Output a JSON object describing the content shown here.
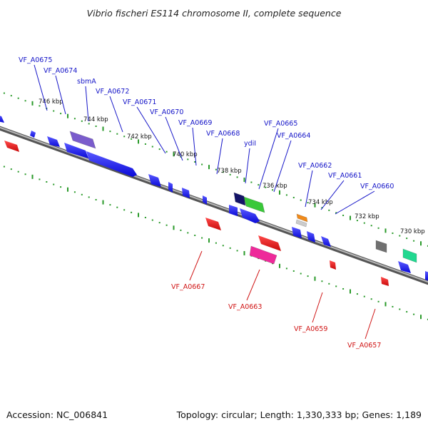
{
  "title": "Vibrio fischeri ES114 chromosome II, complete sequence",
  "footer": {
    "accession": "Accession: NC_006841",
    "summary": "Topology: circular; Length: 1,330,333 bp; Genes: 1,189"
  },
  "kbp_ticks": [
    "746 kbp",
    "744 kbp",
    "742 kbp",
    "740 kbp",
    "738 kbp",
    "736 kbp",
    "734 kbp",
    "732 kbp",
    "730 kbp"
  ],
  "genes_top": [
    "VF_A0675",
    "VF_A0674",
    "sbmA",
    "VF_A0672",
    "VF_A0671",
    "VF_A0670",
    "VF_A0669",
    "VF_A0668",
    "ydiI",
    "VF_A0665",
    "VF_A0664",
    "VF_A0662",
    "VF_A0661",
    "VF_A0660"
  ],
  "genes_bottom": [
    "VF_A0667",
    "VF_A0663",
    "VF_A0659",
    "VF_A0657"
  ],
  "colors": {
    "forward_gene": "#1a1af0",
    "reverse_gene": "#e81515",
    "backbone": "#888888",
    "tick_dots": "#2a9a2a",
    "top_label": "#1515c8",
    "bottom_label": "#d01515"
  },
  "features": [
    {
      "strand": "+",
      "color": "#7a5ccc"
    },
    {
      "strand": "+",
      "color": "#141468"
    },
    {
      "strand": "+",
      "color": "#3ac83a"
    },
    {
      "strand": "+",
      "color": "#f08a1a"
    },
    {
      "strand": "+",
      "color": "#cccccc"
    },
    {
      "strand": "+",
      "color": "#707070"
    },
    {
      "strand": "+",
      "color": "#22d890"
    },
    {
      "strand": "-",
      "color": "#ee2a9a"
    }
  ]
}
